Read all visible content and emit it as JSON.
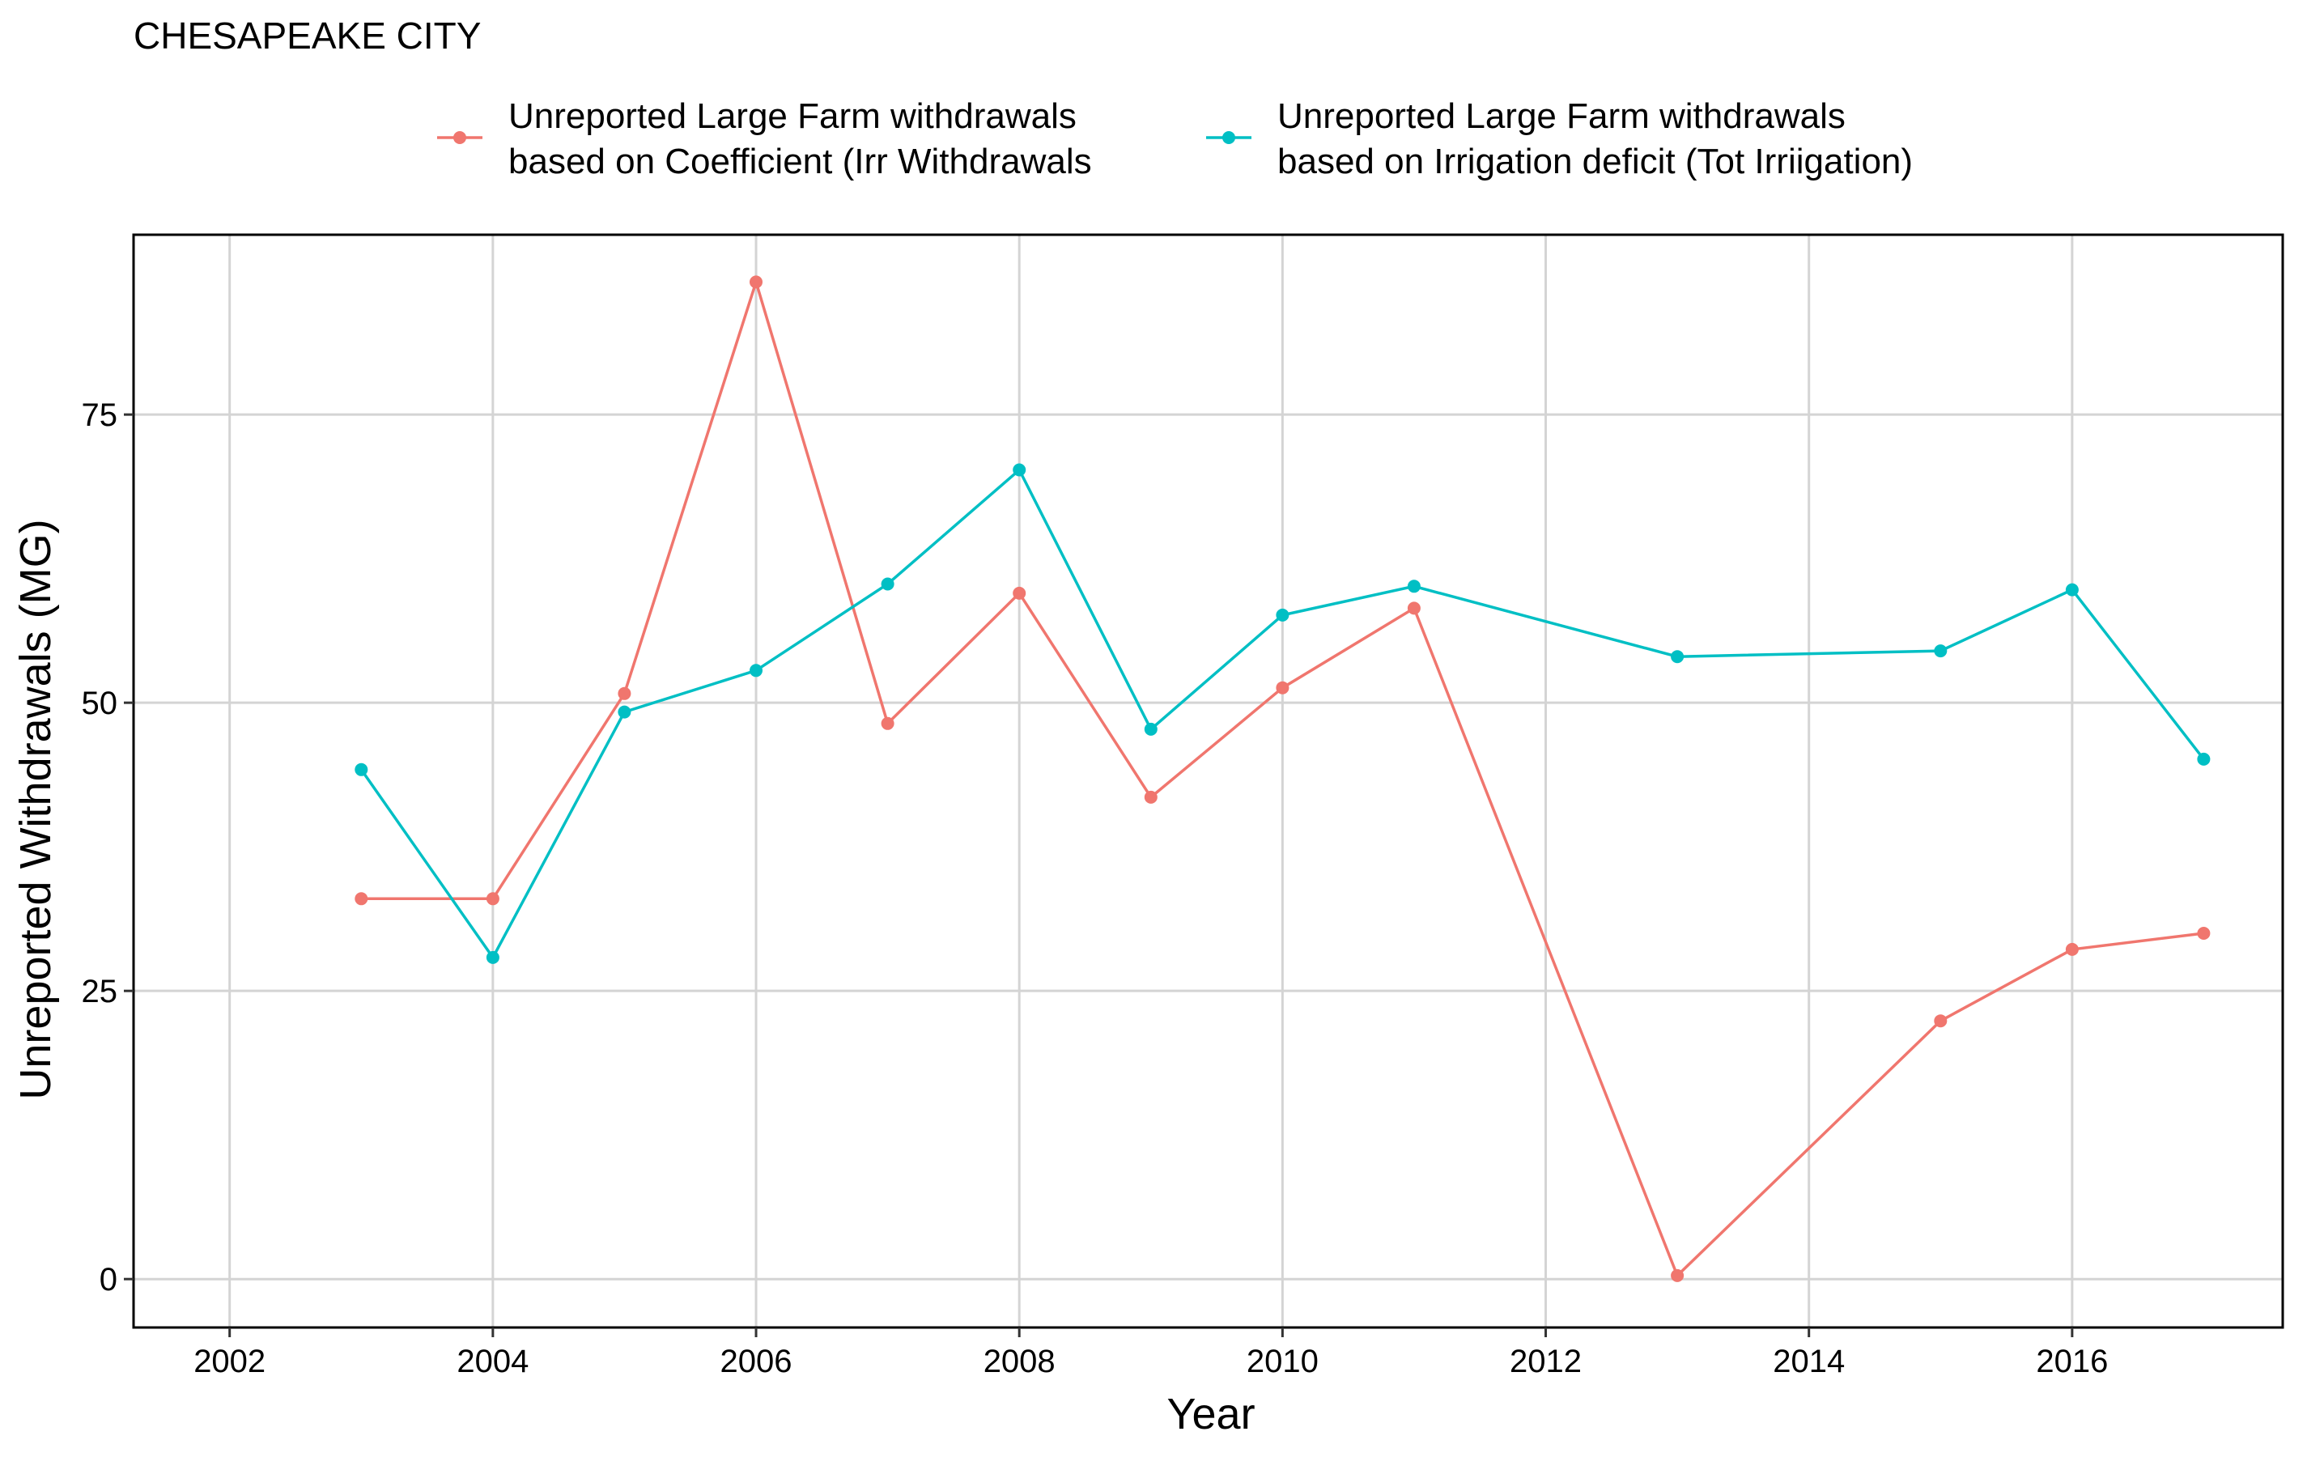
{
  "chart_data": {
    "type": "line",
    "title": "CHESAPEAKE CITY",
    "xlabel": "Year",
    "ylabel": "Unreported Withdrawals (MG)",
    "xlim": [
      2001.27,
      2017.6
    ],
    "ylim": [
      -4.2,
      90.6
    ],
    "x_ticks": [
      2002,
      2004,
      2006,
      2008,
      2010,
      2012,
      2014,
      2016
    ],
    "y_ticks": [
      0,
      25,
      50,
      75
    ],
    "grid": true,
    "legend_position": "top",
    "series": [
      {
        "name": "Unreported Large Farm withdrawals\nbased on Coefficient (Irr Withdrawals",
        "color": "#f0766e",
        "points": [
          {
            "x": 2003,
            "y": 33.0
          },
          {
            "x": 2004,
            "y": 33.0
          },
          {
            "x": 2005,
            "y": 50.8
          },
          {
            "x": 2006,
            "y": 86.5
          },
          {
            "x": 2007,
            "y": 48.2
          },
          {
            "x": 2008,
            "y": 59.5
          },
          {
            "x": 2009,
            "y": 41.8
          },
          {
            "x": 2010,
            "y": 51.3
          },
          {
            "x": 2011,
            "y": 58.2
          },
          {
            "x": 2013,
            "y": 0.3
          },
          {
            "x": 2015,
            "y": 22.4
          },
          {
            "x": 2016,
            "y": 28.6
          },
          {
            "x": 2017,
            "y": 30.0
          }
        ]
      },
      {
        "name": "Unreported Large Farm withdrawals\nbased on Irrigation deficit (Tot Irriigation)",
        "color": "#00bfc4",
        "points": [
          {
            "x": 2003,
            "y": 44.2
          },
          {
            "x": 2004,
            "y": 27.9
          },
          {
            "x": 2005,
            "y": 49.2
          },
          {
            "x": 2006,
            "y": 52.8
          },
          {
            "x": 2007,
            "y": 60.3
          },
          {
            "x": 2008,
            "y": 70.2
          },
          {
            "x": 2009,
            "y": 47.7
          },
          {
            "x": 2010,
            "y": 57.6
          },
          {
            "x": 2011,
            "y": 60.1
          },
          {
            "x": 2013,
            "y": 54.0
          },
          {
            "x": 2015,
            "y": 54.5
          },
          {
            "x": 2016,
            "y": 59.8
          },
          {
            "x": 2017,
            "y": 45.1
          }
        ]
      }
    ]
  }
}
